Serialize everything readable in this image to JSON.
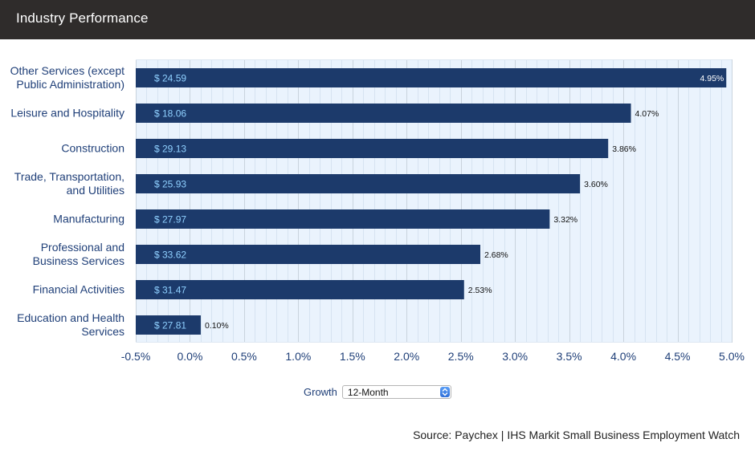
{
  "header": {
    "title": "Industry Performance"
  },
  "controls": {
    "growth_label": "Growth",
    "period_selected": "12-Month"
  },
  "source": "Source: Paychex | IHS Markit Small Business Employment Watch",
  "colors": {
    "header_bg": "#2f2c2b",
    "bar": "#1c3a6b",
    "bar_value_text": "#8fd0ff",
    "plot_bg": "#eaf3fd",
    "grid": "#c9d3dd",
    "label_text": "#1f3f78"
  },
  "chart_data": {
    "type": "bar",
    "orientation": "horizontal",
    "categories": [
      [
        "Other Services (except",
        "Public Administration)"
      ],
      [
        "Leisure and Hospitality"
      ],
      [
        "Construction"
      ],
      [
        "Trade, Transportation,",
        "and Utilities"
      ],
      [
        "Manufacturing"
      ],
      [
        "Professional and",
        "Business Services"
      ],
      [
        "Financial Activities"
      ],
      [
        "Education and Health",
        "Services"
      ]
    ],
    "values": [
      4.95,
      4.07,
      3.86,
      3.6,
      3.32,
      2.68,
      2.53,
      0.1
    ],
    "value_labels": [
      "4.95%",
      "4.07%",
      "3.86%",
      "3.60%",
      "3.32%",
      "2.68%",
      "2.53%",
      "0.10%"
    ],
    "wage_labels": [
      "$ 24.59",
      "$ 18.06",
      "$ 29.13",
      "$ 25.93",
      "$ 27.97",
      "$ 33.62",
      "$ 31.47",
      "$ 27.81"
    ],
    "xlim": [
      -0.5,
      5.0
    ],
    "x_ticks": [
      "-0.5%",
      "0.0%",
      "0.5%",
      "1.0%",
      "1.5%",
      "2.0%",
      "2.5%",
      "3.0%",
      "3.5%",
      "4.0%",
      "4.5%",
      "5.0%"
    ],
    "x_tick_values": [
      -0.5,
      0.0,
      0.5,
      1.0,
      1.5,
      2.0,
      2.5,
      3.0,
      3.5,
      4.0,
      4.5,
      5.0
    ],
    "grid": true,
    "legend": "none"
  }
}
